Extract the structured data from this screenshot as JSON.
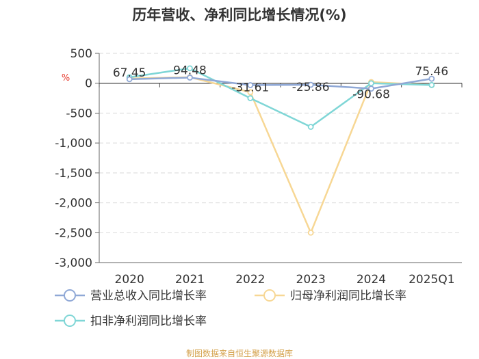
{
  "chart_data": {
    "type": "line",
    "title": "历年营收、净利同比增长情况(%)",
    "ylabel": "%",
    "categories": [
      "2020",
      "2021",
      "2022",
      "2023",
      "2024",
      "2025Q1"
    ],
    "ylim": [
      -3000,
      500
    ],
    "yticks": [
      500,
      0,
      -500,
      -1000,
      -1500,
      -2000,
      -2500,
      -3000
    ],
    "ytick_labels": [
      "500",
      "0",
      "-500",
      "-1,000",
      "-1,500",
      "-2,000",
      "-2,500",
      "-3,000"
    ],
    "grid": true,
    "legend_position": "bottom",
    "series": [
      {
        "name": "营业总收入同比增长率",
        "color": "#8fa8d6",
        "values": [
          67.45,
          94.48,
          -31.61,
          -25.86,
          -90.68,
          75.46
        ],
        "labels": [
          "67.45",
          "94.48",
          "-31.61",
          "-25.86",
          "-90.68",
          "75.46"
        ]
      },
      {
        "name": "归母净利润同比增长率",
        "color": "#f7d794",
        "values": [
          80,
          100,
          -150,
          -2500,
          20,
          -30
        ]
      },
      {
        "name": "扣非净利润同比增长率",
        "color": "#7fd6d6",
        "values": [
          100,
          250,
          -250,
          -730,
          0,
          -30
        ]
      }
    ]
  },
  "source": "制图数据来自恒生聚源数据库"
}
